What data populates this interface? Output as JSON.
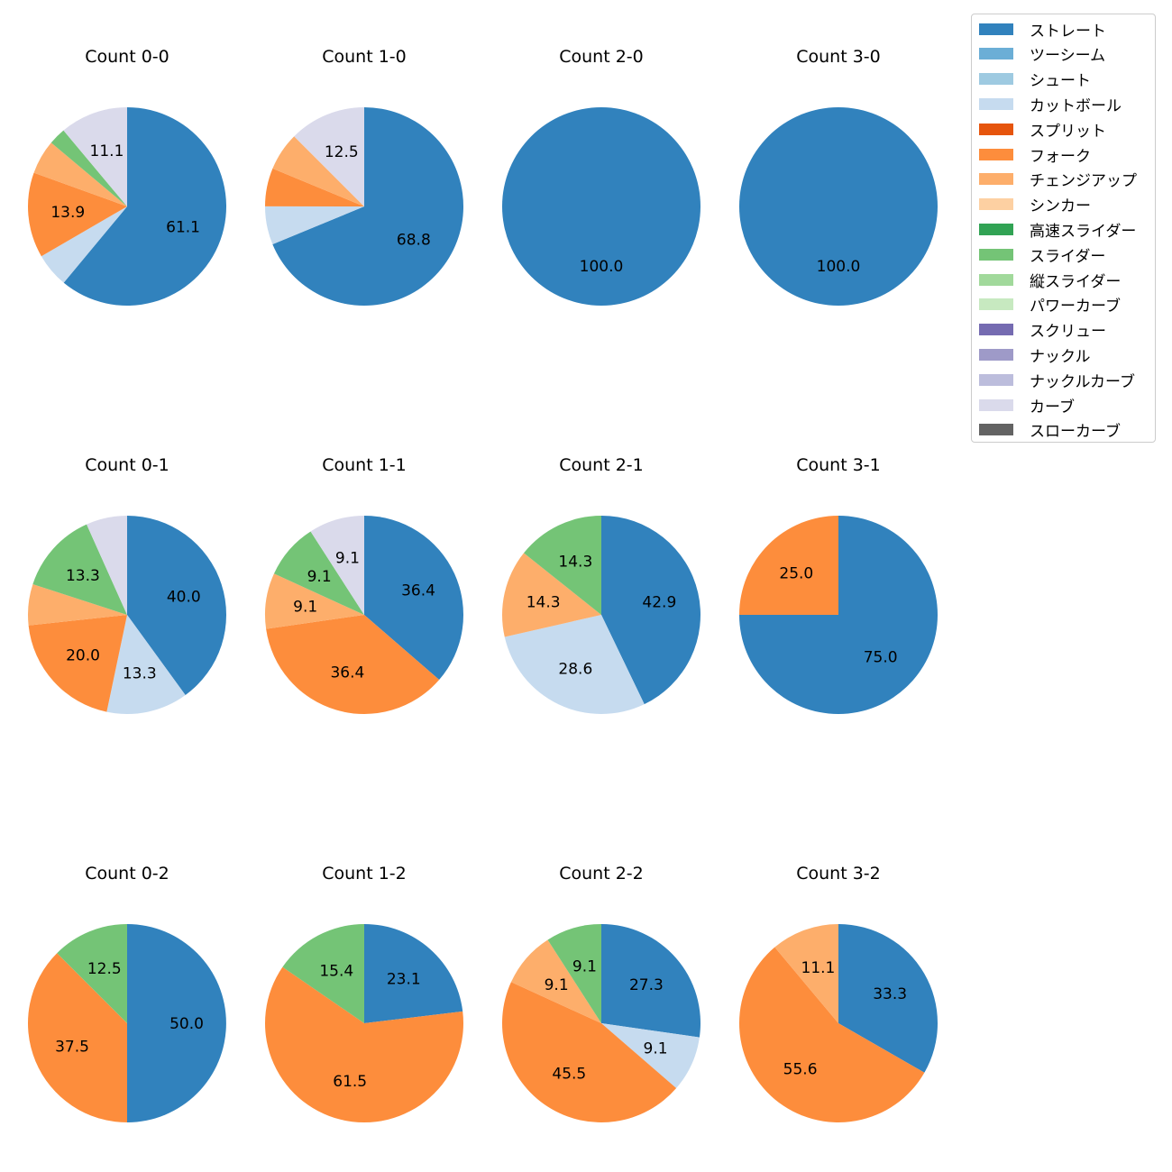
{
  "pitch_types": [
    {
      "name": "ストレート",
      "color": "#3182bd"
    },
    {
      "name": "ツーシーム",
      "color": "#6baed6"
    },
    {
      "name": "シュート",
      "color": "#9ecae1"
    },
    {
      "name": "カットボール",
      "color": "#c6dbef"
    },
    {
      "name": "スプリット",
      "color": "#e6550d"
    },
    {
      "name": "フォーク",
      "color": "#fd8d3c"
    },
    {
      "name": "チェンジアップ",
      "color": "#fdae6b"
    },
    {
      "name": "シンカー",
      "color": "#fdd0a2"
    },
    {
      "name": "高速スライダー",
      "color": "#31a354"
    },
    {
      "name": "スライダー",
      "color": "#74c476"
    },
    {
      "name": "縦スライダー",
      "color": "#a1d99b"
    },
    {
      "name": "パワーカーブ",
      "color": "#c7e9c0"
    },
    {
      "name": "スクリュー",
      "color": "#756bb1"
    },
    {
      "name": "ナックル",
      "color": "#9e9ac8"
    },
    {
      "name": "ナックルカーブ",
      "color": "#bcbddc"
    },
    {
      "name": "カーブ",
      "color": "#dadaeb"
    },
    {
      "name": "スローカーブ",
      "color": "#636363"
    }
  ],
  "chart_data": [
    {
      "type": "pie",
      "title": "Count 0-0",
      "slices": [
        {
          "label": "ストレート",
          "value": 61.1,
          "text": "61.1"
        },
        {
          "label": "カットボール",
          "value": 5.6,
          "text": ""
        },
        {
          "label": "フォーク",
          "value": 13.9,
          "text": "13.9"
        },
        {
          "label": "チェンジアップ",
          "value": 5.6,
          "text": ""
        },
        {
          "label": "スライダー",
          "value": 2.8,
          "text": ""
        },
        {
          "label": "カーブ",
          "value": 11.1,
          "text": "11.1"
        }
      ]
    },
    {
      "type": "pie",
      "title": "Count 1-0",
      "slices": [
        {
          "label": "ストレート",
          "value": 68.8,
          "text": "68.8"
        },
        {
          "label": "カットボール",
          "value": 6.25,
          "text": ""
        },
        {
          "label": "フォーク",
          "value": 6.25,
          "text": ""
        },
        {
          "label": "チェンジアップ",
          "value": 6.25,
          "text": ""
        },
        {
          "label": "カーブ",
          "value": 12.5,
          "text": "12.5"
        }
      ]
    },
    {
      "type": "pie",
      "title": "Count 2-0",
      "slices": [
        {
          "label": "ストレート",
          "value": 100.0,
          "text": "100.0"
        }
      ]
    },
    {
      "type": "pie",
      "title": "Count 3-0",
      "slices": [
        {
          "label": "ストレート",
          "value": 100.0,
          "text": "100.0"
        }
      ]
    },
    {
      "type": "pie",
      "title": "Count 0-1",
      "slices": [
        {
          "label": "ストレート",
          "value": 40.0,
          "text": "40.0"
        },
        {
          "label": "カットボール",
          "value": 13.3,
          "text": "13.3"
        },
        {
          "label": "フォーク",
          "value": 20.0,
          "text": "20.0"
        },
        {
          "label": "チェンジアップ",
          "value": 6.7,
          "text": ""
        },
        {
          "label": "スライダー",
          "value": 13.3,
          "text": "13.3"
        },
        {
          "label": "カーブ",
          "value": 6.7,
          "text": ""
        }
      ]
    },
    {
      "type": "pie",
      "title": "Count 1-1",
      "slices": [
        {
          "label": "ストレート",
          "value": 36.4,
          "text": "36.4"
        },
        {
          "label": "フォーク",
          "value": 36.4,
          "text": "36.4"
        },
        {
          "label": "チェンジアップ",
          "value": 9.1,
          "text": "9.1"
        },
        {
          "label": "スライダー",
          "value": 9.1,
          "text": "9.1"
        },
        {
          "label": "カーブ",
          "value": 9.1,
          "text": "9.1"
        }
      ]
    },
    {
      "type": "pie",
      "title": "Count 2-1",
      "slices": [
        {
          "label": "ストレート",
          "value": 42.9,
          "text": "42.9"
        },
        {
          "label": "カットボール",
          "value": 28.6,
          "text": "28.6"
        },
        {
          "label": "チェンジアップ",
          "value": 14.3,
          "text": "14.3"
        },
        {
          "label": "スライダー",
          "value": 14.3,
          "text": "14.3"
        }
      ]
    },
    {
      "type": "pie",
      "title": "Count 3-1",
      "slices": [
        {
          "label": "ストレート",
          "value": 75.0,
          "text": "75.0"
        },
        {
          "label": "フォーク",
          "value": 25.0,
          "text": "25.0"
        }
      ]
    },
    {
      "type": "pie",
      "title": "Count 0-2",
      "slices": [
        {
          "label": "ストレート",
          "value": 50.0,
          "text": "50.0"
        },
        {
          "label": "フォーク",
          "value": 37.5,
          "text": "37.5"
        },
        {
          "label": "スライダー",
          "value": 12.5,
          "text": "12.5"
        }
      ]
    },
    {
      "type": "pie",
      "title": "Count 1-2",
      "slices": [
        {
          "label": "ストレート",
          "value": 23.1,
          "text": "23.1"
        },
        {
          "label": "フォーク",
          "value": 61.5,
          "text": "61.5"
        },
        {
          "label": "スライダー",
          "value": 15.4,
          "text": "15.4"
        }
      ]
    },
    {
      "type": "pie",
      "title": "Count 2-2",
      "slices": [
        {
          "label": "ストレート",
          "value": 27.3,
          "text": "27.3"
        },
        {
          "label": "カットボール",
          "value": 9.1,
          "text": "9.1"
        },
        {
          "label": "フォーク",
          "value": 45.5,
          "text": "45.5"
        },
        {
          "label": "チェンジアップ",
          "value": 9.1,
          "text": "9.1"
        },
        {
          "label": "スライダー",
          "value": 9.1,
          "text": "9.1"
        }
      ]
    },
    {
      "type": "pie",
      "title": "Count 3-2",
      "slices": [
        {
          "label": "ストレート",
          "value": 33.3,
          "text": "33.3"
        },
        {
          "label": "フォーク",
          "value": 55.6,
          "text": "55.6"
        },
        {
          "label": "チェンジアップ",
          "value": 11.1,
          "text": "11.1"
        }
      ]
    }
  ]
}
